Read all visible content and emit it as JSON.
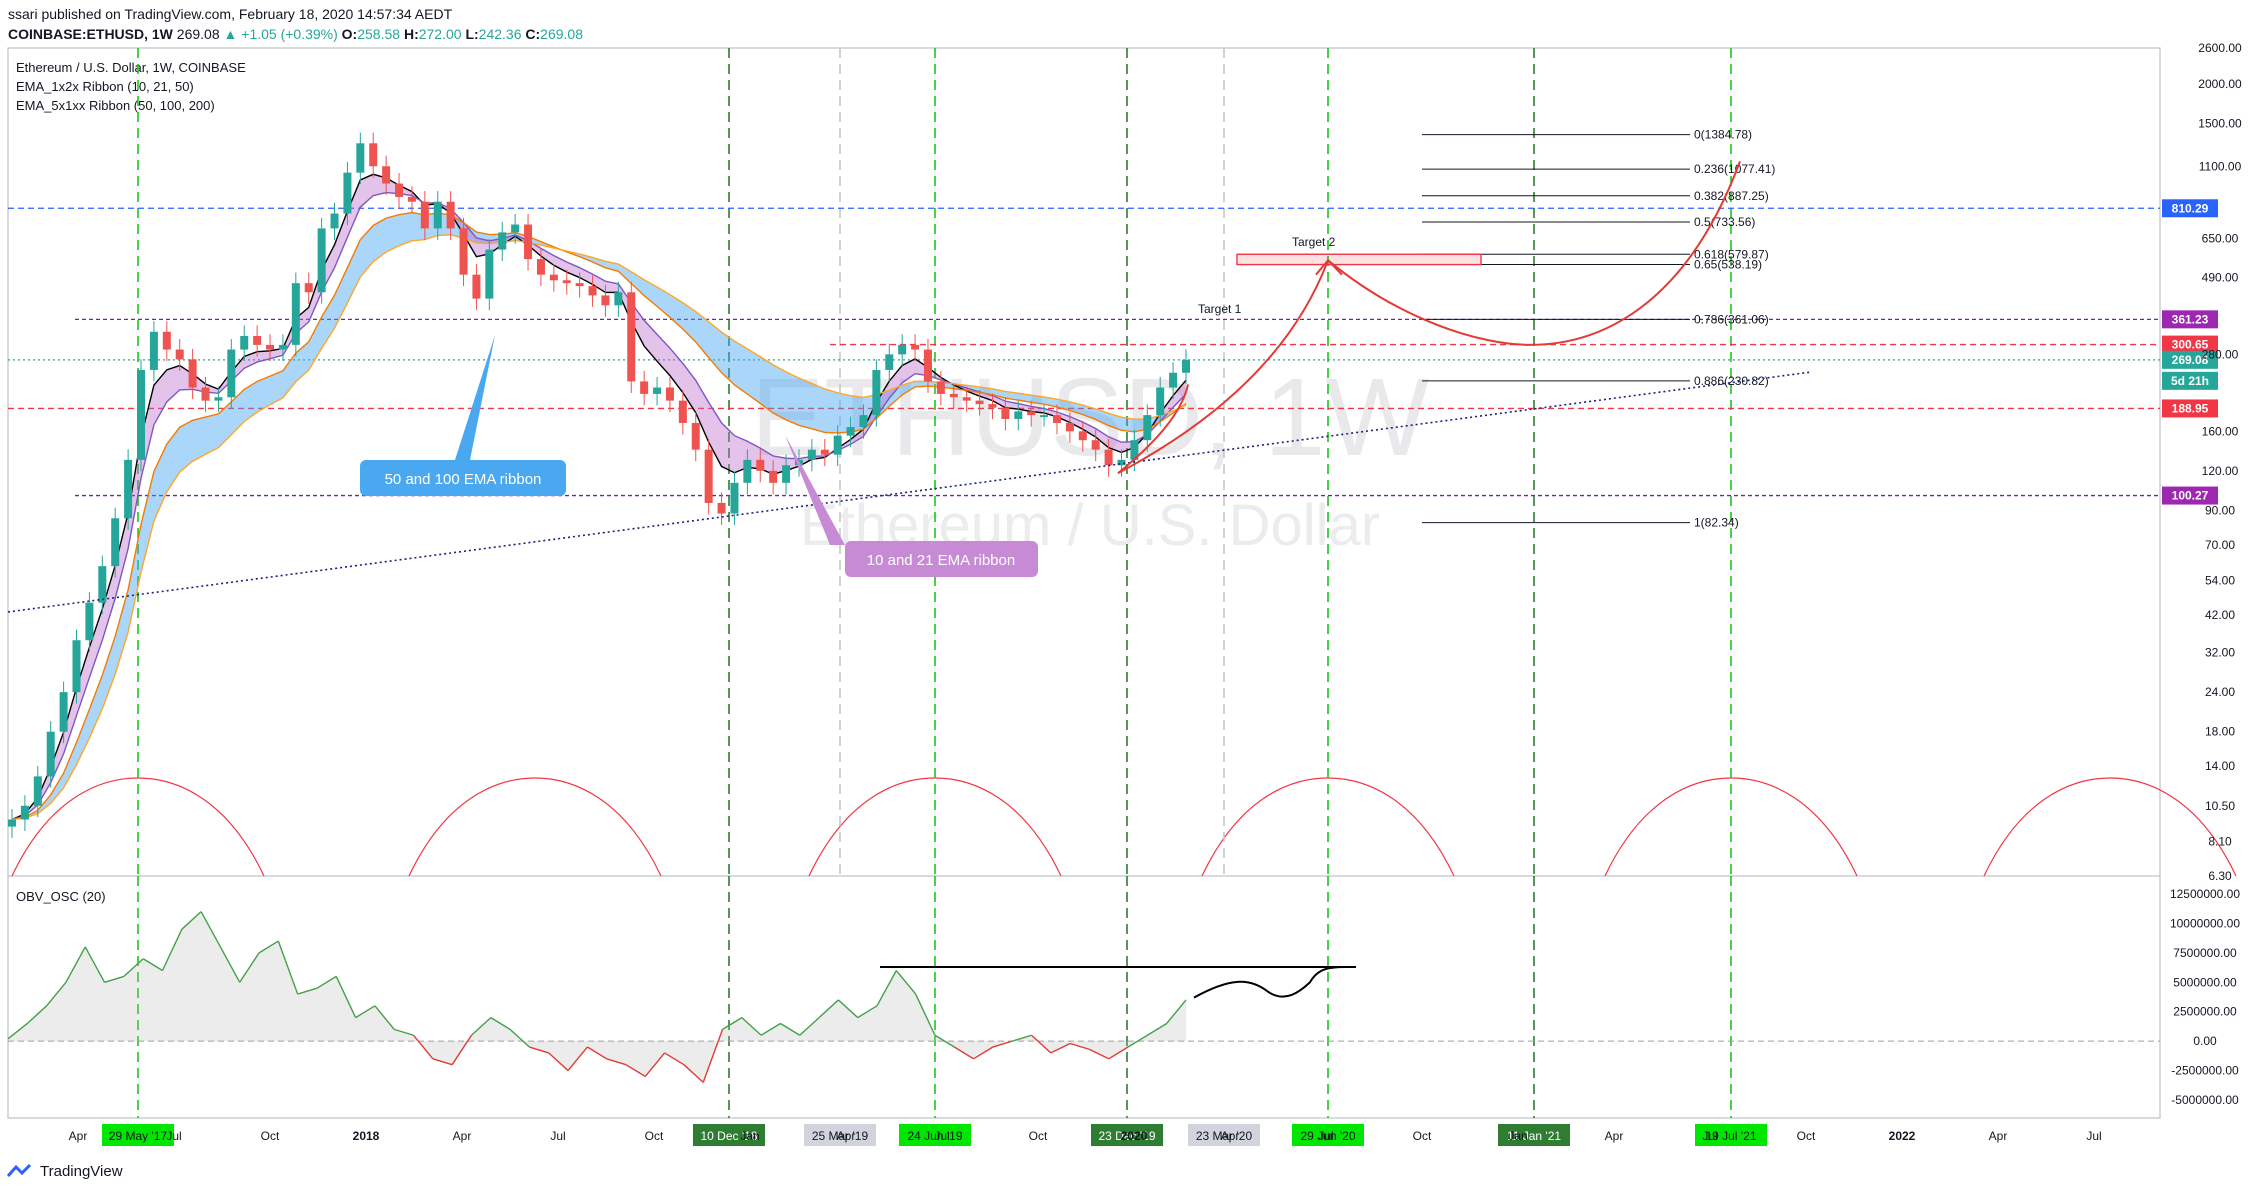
{
  "header": {
    "publish_line": "ssari published on TradingView.com, February 18, 2020 14:57:34 AEDT",
    "symbol": "COINBASE:ETHUSD, 1W",
    "last": "269.08",
    "change": "▲ +1.05 (+0.39%)",
    "o_label": "O:",
    "o": "258.58",
    "h_label": "H:",
    "h": "272.00",
    "l_label": "L:",
    "l": "242.36",
    "c_label": "C:",
    "c": "269.08"
  },
  "legend": {
    "title": "Ethereum / U.S. Dollar, 1W, COINBASE",
    "ribbon1": "EMA_1x2x Ribbon  (10, 21, 50)",
    "ribbon2": "EMA_5x1xx Ribbon  (50, 100, 200)"
  },
  "watermark": {
    "symbol": "ETHUSD, 1W",
    "name": "Ethereum / U.S. Dollar"
  },
  "oscillator": {
    "title": "OBV_OSC (20)"
  },
  "callouts": {
    "ribbon_50_100": "50 and 100 EMA ribbon",
    "ribbon_10_21": "10 and 21 EMA ribbon"
  },
  "targets": {
    "target1": "Target 1",
    "target2": "Target 2"
  },
  "footer": {
    "brand": "TradingView"
  },
  "chart_data": [
    {
      "type": "candlestick",
      "title": "Ethereum / U.S. Dollar, 1W, COINBASE",
      "scale": "log",
      "ylim": [
        6.3,
        2600
      ],
      "y_ticks": [
        "2600.00",
        "2000.00",
        "1500.00",
        "1100.00",
        "650.00",
        "490.00",
        "280.00",
        "160.00",
        "120.00",
        "90.00",
        "70.00",
        "54.00",
        "42.00",
        "32.00",
        "24.00",
        "18.00",
        "14.00",
        "10.50",
        "8.10",
        "6.30"
      ],
      "x_ticks": [
        "Apr",
        "Jul",
        "Oct",
        "2018",
        "Apr",
        "Jul",
        "Oct",
        "Jan",
        "Apr",
        "Jul",
        "Oct",
        "2020",
        "Apr",
        "Jul",
        "Oct",
        "Jan",
        "Apr",
        "Jul",
        "Oct",
        "2022",
        "Apr",
        "Jul"
      ],
      "date_markers": [
        {
          "label": "29 May '17",
          "color": "#00e600"
        },
        {
          "label": "10 Dec '18",
          "color": "#2e7d32"
        },
        {
          "label": "25 Mar '19",
          "color": "#d1d4dc"
        },
        {
          "label": "24 Jun '19",
          "color": "#00e600"
        },
        {
          "label": "23 Dec '19",
          "color": "#2e7d32"
        },
        {
          "label": "23 Mar '20",
          "color": "#d1d4dc"
        },
        {
          "label": "29 Jun '20",
          "color": "#00e600"
        },
        {
          "label": "11 Jan '21",
          "color": "#2e7d32"
        },
        {
          "label": "19 Jul '21",
          "color": "#00e600"
        }
      ],
      "price_labels": [
        {
          "value": "810.29",
          "color": "#2962ff"
        },
        {
          "value": "361.23",
          "color": "#9c27b0"
        },
        {
          "value": "300.65",
          "color": "#f23645"
        },
        {
          "value": "269.08",
          "color": "#26a69a"
        },
        {
          "value": "5d 21h",
          "color": "#26a69a"
        },
        {
          "value": "188.95",
          "color": "#f23645"
        },
        {
          "value": "100.27",
          "color": "#9c27b0"
        }
      ],
      "fib_levels": [
        {
          "label": "0(1384.78)",
          "price": 1384.78
        },
        {
          "label": "0.236(1077.41)",
          "price": 1077.41
        },
        {
          "label": "0.382(887.25)",
          "price": 887.25
        },
        {
          "label": "0.5(733.56)",
          "price": 733.56
        },
        {
          "label": "0.618(579.87)",
          "price": 579.87
        },
        {
          "label": "0.65(538.19)",
          "price": 538.19
        },
        {
          "label": "0.786(361.06)",
          "price": 361.06
        },
        {
          "label": "0.886(230.82)",
          "price": 230.82
        },
        {
          "label": "1(82.34)",
          "price": 82.34
        }
      ],
      "weekly_close_approx": [
        9.5,
        10.5,
        13,
        18,
        24,
        35,
        46,
        60,
        85,
        130,
        250,
        330,
        290,
        270,
        220,
        200,
        205,
        290,
        320,
        300,
        290,
        300,
        470,
        440,
        700,
        780,
        1050,
        1300,
        1100,
        970,
        880,
        850,
        700,
        850,
        700,
        500,
        420,
        600,
        680,
        720,
        560,
        500,
        480,
        470,
        460,
        430,
        400,
        440,
        230,
        210,
        220,
        200,
        170,
        140,
        95,
        88,
        110,
        130,
        120,
        110,
        125,
        130,
        140,
        135,
        155,
        165,
        180,
        250,
        280,
        300,
        290,
        230,
        210,
        205,
        200,
        195,
        190,
        175,
        185,
        180,
        180,
        170,
        160,
        150,
        140,
        125,
        130,
        150,
        180,
        220,
        245,
        269
      ]
    },
    {
      "type": "line",
      "title": "OBV_OSC (20)",
      "ylim": [
        -5000000,
        12500000
      ],
      "y_ticks": [
        "12500000.00",
        "10000000.00",
        "7500000.00",
        "5000000.00",
        "2500000.00",
        "0.00",
        "-2500000.00",
        "-5000000.00"
      ],
      "values_approx": [
        200000,
        1500000,
        3000000,
        5000000,
        8000000,
        5000000,
        5500000,
        7000000,
        6000000,
        9500000,
        11000000,
        8000000,
        5000000,
        7500000,
        8500000,
        4000000,
        4500000,
        5500000,
        2000000,
        3000000,
        1000000,
        500000,
        -1500000,
        -2000000,
        500000,
        2000000,
        1000000,
        -500000,
        -1000000,
        -2500000,
        -500000,
        -1500000,
        -2000000,
        -3000000,
        -1000000,
        -2000000,
        -3500000,
        1000000,
        2000000,
        500000,
        1500000,
        500000,
        2000000,
        3500000,
        2000000,
        3000000,
        6000000,
        4000000,
        500000,
        -500000,
        -1500000,
        -500000,
        0,
        500000,
        -1000000,
        -200000,
        -700000,
        -1500000,
        -500000,
        500000,
        1500000,
        3500000
      ]
    }
  ]
}
